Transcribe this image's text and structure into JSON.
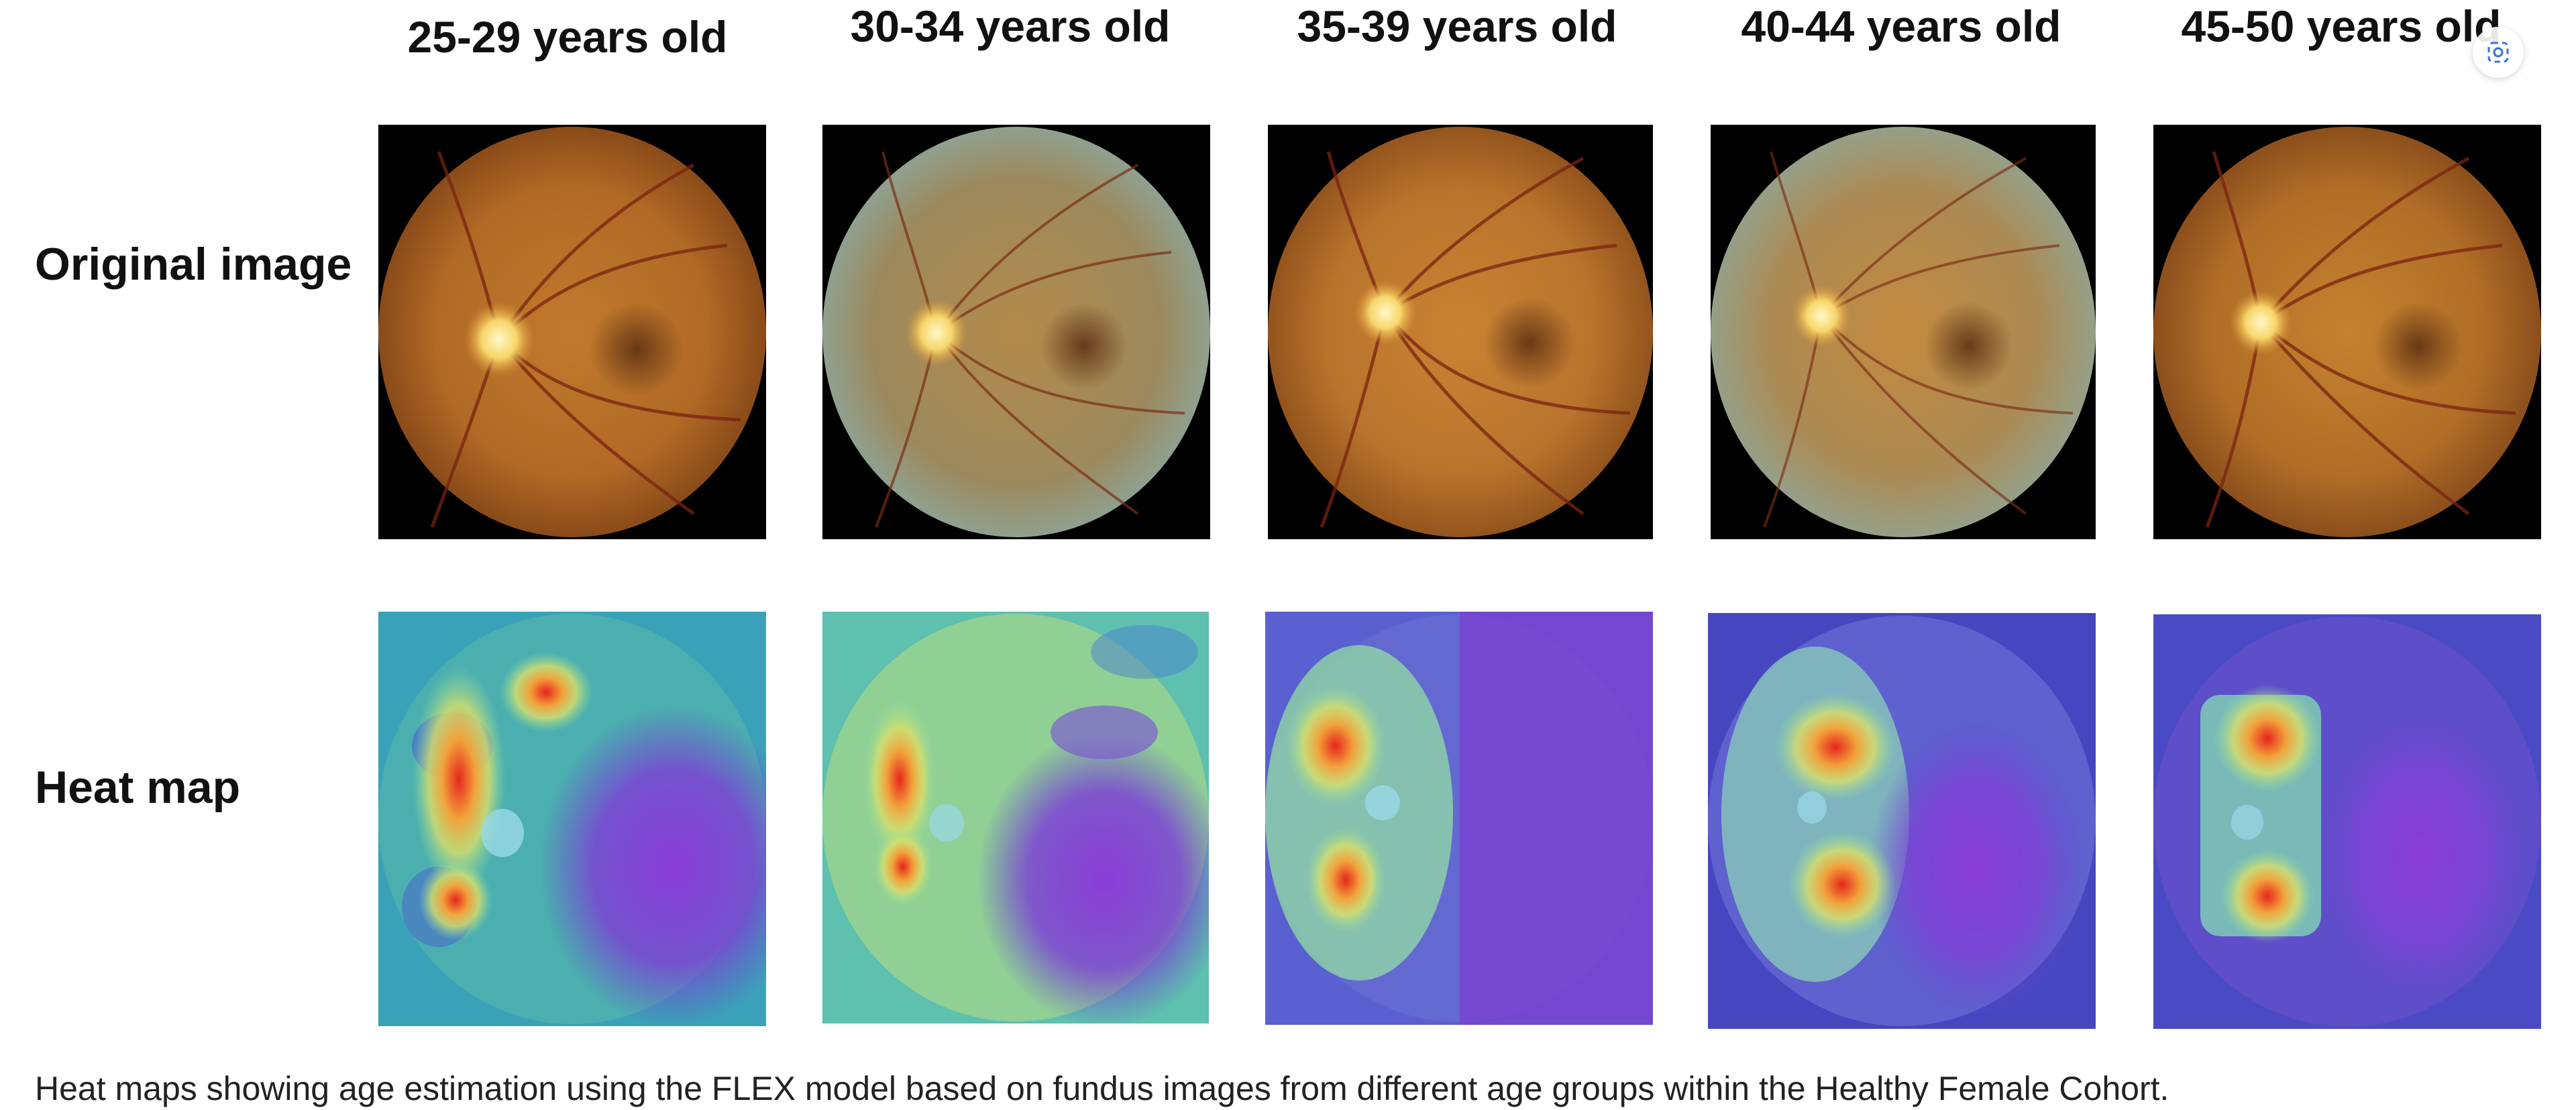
{
  "figure": {
    "columns": [
      {
        "label": "25-29 years old"
      },
      {
        "label": "30-34 years old"
      },
      {
        "label": "35-39 years old"
      },
      {
        "label": "40-44 years old"
      },
      {
        "label": "45-50 years old"
      }
    ],
    "rows": {
      "original_label": "Original image",
      "heatmap_label": "Heat map"
    },
    "caption": "Heat maps showing age estimation using the FLEX model based on fundus images from different age groups within the Healthy Female Cohort."
  },
  "overlay": {
    "icon": "lens-search-icon"
  }
}
